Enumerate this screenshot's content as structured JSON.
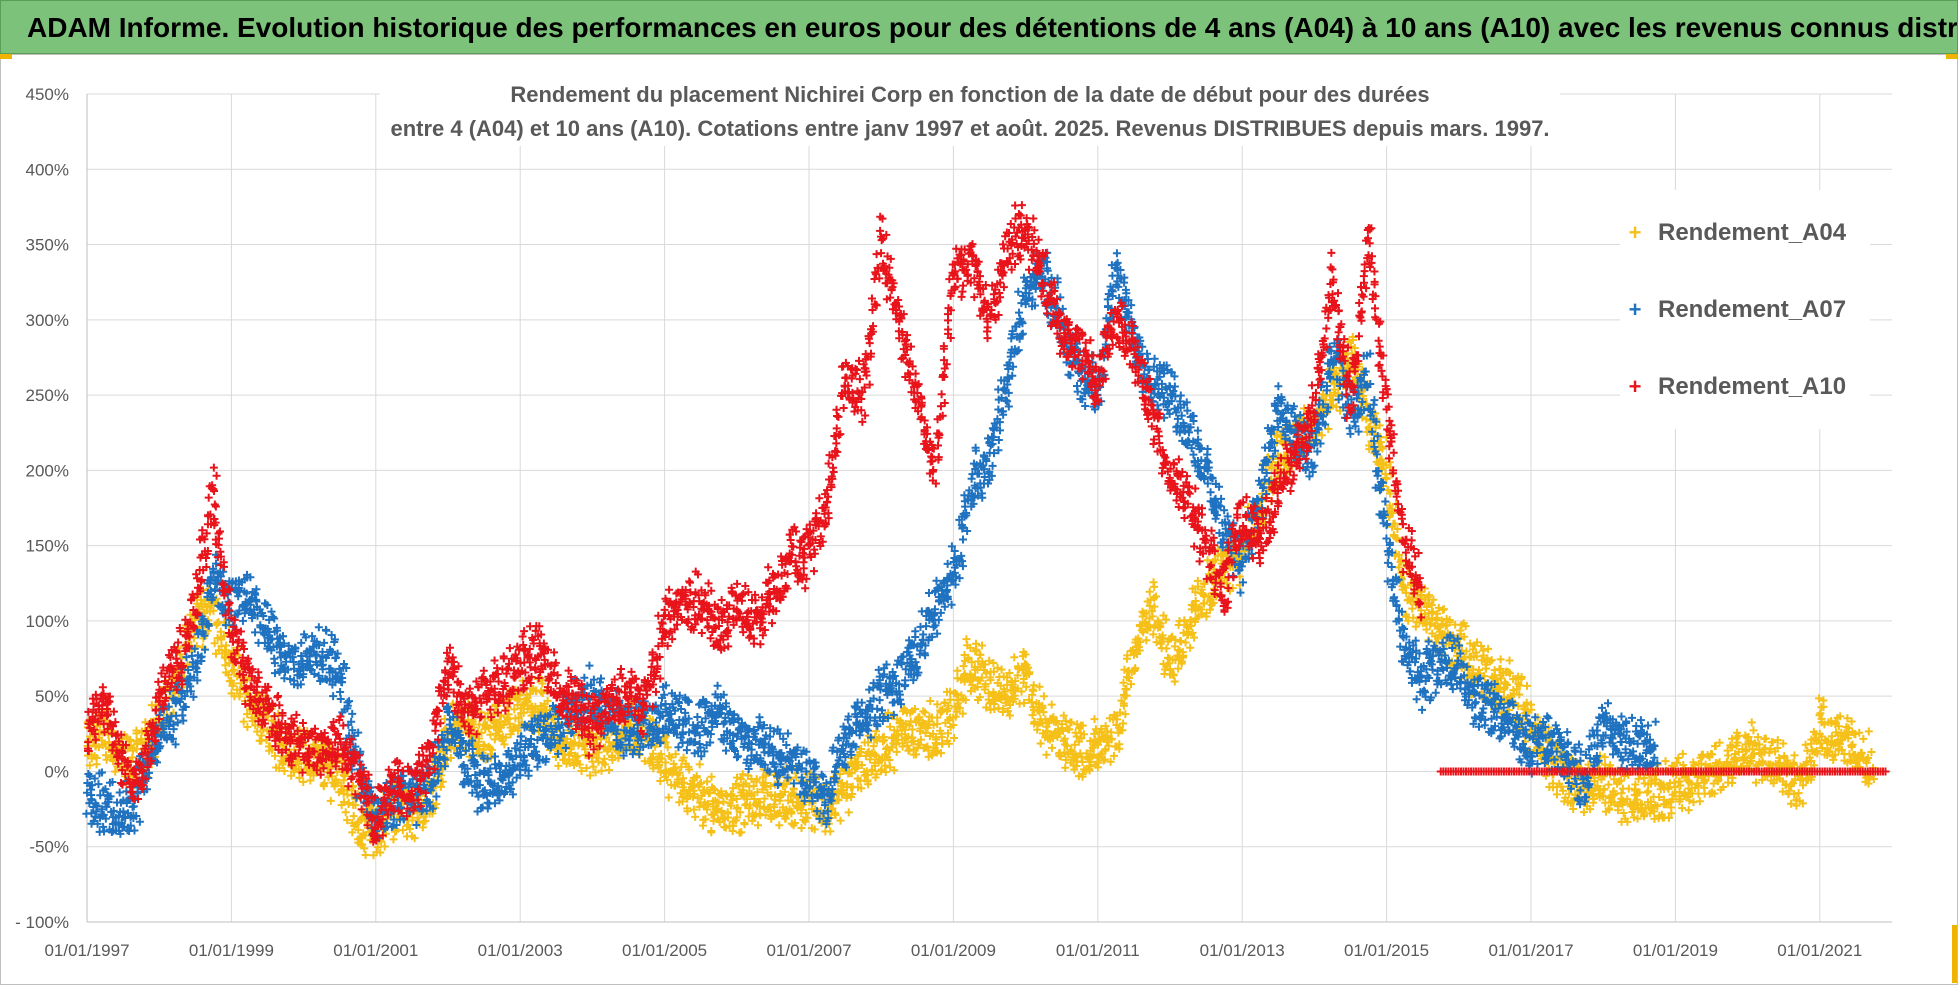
{
  "banner": {
    "title": "ADAM Informe. Evolution historique des performances en euros pour des détentions de 4 ans (A04) à 10 ans (A10) avec les revenus connus distribués"
  },
  "chart_data": {
    "type": "scatter",
    "title_line1": "Rendement du placement Nichirei Corp en fonction de la date de début pour des durées",
    "title_line2": "entre 4 (A04) et 10 ans (A10). Cotations entre janv 1997 et août. 2025. Revenus DISTRIBUES depuis mars. 1997.",
    "xlabel": "",
    "ylabel": "",
    "x_range": [
      "01/01/1997",
      "01/01/2022"
    ],
    "ylim": [
      -100,
      450
    ],
    "y_ticks": [
      -100,
      -50,
      0,
      50,
      100,
      150,
      200,
      250,
      300,
      350,
      400,
      450
    ],
    "y_tick_labels": [
      "- 100%",
      "-50%",
      "0%",
      "50%",
      "100%",
      "150%",
      "200%",
      "250%",
      "300%",
      "350%",
      "400%",
      "450%"
    ],
    "x_tick_labels": [
      "01/01/1997",
      "01/01/1999",
      "01/01/2001",
      "01/01/2003",
      "01/01/2005",
      "01/01/2007",
      "01/01/2009",
      "01/01/2011",
      "01/01/2013",
      "01/01/2015",
      "01/01/2017",
      "01/01/2019",
      "01/01/2021"
    ],
    "grid": true,
    "legend_position": "top-right",
    "series": [
      {
        "name": "Rendement_A04",
        "color": "#f5c018",
        "points": [
          [
            "1997-01",
            15
          ],
          [
            "1997-04",
            28
          ],
          [
            "1997-07",
            5
          ],
          [
            "1997-10",
            10
          ],
          [
            "1998-01",
            35
          ],
          [
            "1998-04",
            60
          ],
          [
            "1998-07",
            100
          ],
          [
            "1998-10",
            110
          ],
          [
            "1999-01",
            70
          ],
          [
            "1999-04",
            45
          ],
          [
            "1999-07",
            30
          ],
          [
            "1999-10",
            15
          ],
          [
            "2000-01",
            10
          ],
          [
            "2000-04",
            5
          ],
          [
            "2000-07",
            0
          ],
          [
            "2000-10",
            -35
          ],
          [
            "2001-01",
            -40
          ],
          [
            "2001-04",
            -25
          ],
          [
            "2001-07",
            -25
          ],
          [
            "2001-10",
            -20
          ],
          [
            "2002-01",
            25
          ],
          [
            "2002-04",
            30
          ],
          [
            "2002-07",
            20
          ],
          [
            "2002-10",
            30
          ],
          [
            "2003-01",
            40
          ],
          [
            "2003-04",
            45
          ],
          [
            "2003-07",
            20
          ],
          [
            "2003-10",
            15
          ],
          [
            "2004-01",
            15
          ],
          [
            "2004-04",
            20
          ],
          [
            "2004-07",
            30
          ],
          [
            "2004-10",
            25
          ],
          [
            "2005-01",
            5
          ],
          [
            "2005-04",
            -10
          ],
          [
            "2005-07",
            -15
          ],
          [
            "2005-10",
            -25
          ],
          [
            "2006-01",
            -20
          ],
          [
            "2006-04",
            -20
          ],
          [
            "2006-07",
            -15
          ],
          [
            "2006-10",
            -20
          ],
          [
            "2007-01",
            -15
          ],
          [
            "2007-04",
            -25
          ],
          [
            "2007-07",
            -10
          ],
          [
            "2007-10",
            5
          ],
          [
            "2008-01",
            15
          ],
          [
            "2008-04",
            25
          ],
          [
            "2008-07",
            30
          ],
          [
            "2008-10",
            25
          ],
          [
            "2009-01",
            40
          ],
          [
            "2009-04",
            75
          ],
          [
            "2009-07",
            55
          ],
          [
            "2009-10",
            55
          ],
          [
            "2010-01",
            65
          ],
          [
            "2010-04",
            30
          ],
          [
            "2010-07",
            20
          ],
          [
            "2010-10",
            15
          ],
          [
            "2011-01",
            15
          ],
          [
            "2011-04",
            20
          ],
          [
            "2011-07",
            80
          ],
          [
            "2011-10",
            110
          ],
          [
            "2012-01",
            70
          ],
          [
            "2012-04",
            100
          ],
          [
            "2012-07",
            120
          ],
          [
            "2012-10",
            140
          ],
          [
            "2013-01",
            145
          ],
          [
            "2013-04",
            175
          ],
          [
            "2013-07",
            210
          ],
          [
            "2013-10",
            220
          ],
          [
            "2014-01",
            230
          ],
          [
            "2014-04",
            250
          ],
          [
            "2014-07",
            280
          ],
          [
            "2014-10",
            230
          ],
          [
            "2015-01",
            200
          ],
          [
            "2015-04",
            120
          ],
          [
            "2015-07",
            105
          ],
          [
            "2015-10",
            95
          ],
          [
            "2016-01",
            80
          ],
          [
            "2016-04",
            70
          ],
          [
            "2016-07",
            60
          ],
          [
            "2016-10",
            55
          ],
          [
            "2017-01",
            30
          ],
          [
            "2017-04",
            10
          ],
          [
            "2017-07",
            -5
          ],
          [
            "2017-10",
            -10
          ],
          [
            "2018-01",
            -5
          ],
          [
            "2018-04",
            -15
          ],
          [
            "2018-07",
            -20
          ],
          [
            "2018-10",
            -15
          ],
          [
            "2019-01",
            -10
          ],
          [
            "2019-04",
            -5
          ],
          [
            "2019-07",
            0
          ],
          [
            "2019-10",
            5
          ],
          [
            "2020-01",
            15
          ],
          [
            "2020-04",
            10
          ],
          [
            "2020-07",
            5
          ],
          [
            "2020-10",
            -10
          ],
          [
            "2021-01",
            30
          ],
          [
            "2021-04",
            20
          ],
          [
            "2021-07",
            15
          ],
          [
            "2021-10",
            5
          ]
        ]
      },
      {
        "name": "Rendement_A07",
        "color": "#1f72c0",
        "points": [
          [
            "1997-01",
            -15
          ],
          [
            "1997-04",
            -25
          ],
          [
            "1997-07",
            -30
          ],
          [
            "1997-10",
            -10
          ],
          [
            "1998-01",
            25
          ],
          [
            "1998-04",
            40
          ],
          [
            "1998-07",
            70
          ],
          [
            "1998-10",
            130
          ],
          [
            "1999-01",
            110
          ],
          [
            "1999-04",
            120
          ],
          [
            "1999-07",
            90
          ],
          [
            "1999-10",
            75
          ],
          [
            "2000-01",
            70
          ],
          [
            "2000-04",
            80
          ],
          [
            "2000-07",
            65
          ],
          [
            "2000-10",
            0
          ],
          [
            "2001-01",
            -30
          ],
          [
            "2001-04",
            -20
          ],
          [
            "2001-07",
            -15
          ],
          [
            "2001-10",
            -15
          ],
          [
            "2002-01",
            35
          ],
          [
            "2002-04",
            5
          ],
          [
            "2002-07",
            -10
          ],
          [
            "2002-10",
            -5
          ],
          [
            "2003-01",
            10
          ],
          [
            "2003-04",
            20
          ],
          [
            "2003-07",
            30
          ],
          [
            "2003-10",
            40
          ],
          [
            "2004-01",
            50
          ],
          [
            "2004-04",
            35
          ],
          [
            "2004-07",
            25
          ],
          [
            "2004-10",
            30
          ],
          [
            "2005-01",
            40
          ],
          [
            "2005-04",
            35
          ],
          [
            "2005-07",
            30
          ],
          [
            "2005-10",
            40
          ],
          [
            "2006-01",
            25
          ],
          [
            "2006-04",
            20
          ],
          [
            "2006-07",
            10
          ],
          [
            "2006-10",
            5
          ],
          [
            "2007-01",
            -5
          ],
          [
            "2007-04",
            -20
          ],
          [
            "2007-07",
            20
          ],
          [
            "2007-10",
            35
          ],
          [
            "2008-01",
            50
          ],
          [
            "2008-04",
            60
          ],
          [
            "2008-07",
            80
          ],
          [
            "2008-10",
            110
          ],
          [
            "2009-01",
            130
          ],
          [
            "2009-04",
            190
          ],
          [
            "2009-07",
            210
          ],
          [
            "2009-10",
            260
          ],
          [
            "2010-01",
            320
          ],
          [
            "2010-04",
            330
          ],
          [
            "2010-07",
            300
          ],
          [
            "2010-10",
            260
          ],
          [
            "2011-01",
            255
          ],
          [
            "2011-04",
            330
          ],
          [
            "2011-07",
            290
          ],
          [
            "2011-10",
            260
          ],
          [
            "2012-01",
            250
          ],
          [
            "2012-04",
            230
          ],
          [
            "2012-07",
            200
          ],
          [
            "2012-10",
            160
          ],
          [
            "2013-01",
            140
          ],
          [
            "2013-04",
            180
          ],
          [
            "2013-07",
            240
          ],
          [
            "2013-10",
            220
          ],
          [
            "2014-01",
            210
          ],
          [
            "2014-04",
            280
          ],
          [
            "2014-07",
            240
          ],
          [
            "2014-10",
            260
          ],
          [
            "2015-01",
            150
          ],
          [
            "2015-04",
            80
          ],
          [
            "2015-07",
            60
          ],
          [
            "2015-10",
            75
          ],
          [
            "2016-01",
            70
          ],
          [
            "2016-04",
            45
          ],
          [
            "2016-07",
            40
          ],
          [
            "2016-10",
            30
          ],
          [
            "2017-01",
            15
          ],
          [
            "2017-04",
            20
          ],
          [
            "2017-07",
            10
          ],
          [
            "2017-10",
            -5
          ],
          [
            "2018-01",
            30
          ],
          [
            "2018-04",
            20
          ],
          [
            "2018-07",
            15
          ],
          [
            "2018-10",
            15
          ]
        ]
      },
      {
        "name": "Rendement_A10",
        "color": "#e8141b",
        "points": [
          [
            "1997-01",
            30
          ],
          [
            "1997-04",
            45
          ],
          [
            "1997-07",
            0
          ],
          [
            "1997-10",
            -5
          ],
          [
            "1998-01",
            50
          ],
          [
            "1998-04",
            70
          ],
          [
            "1998-07",
            110
          ],
          [
            "1998-10",
            185
          ],
          [
            "1999-01",
            90
          ],
          [
            "1999-04",
            60
          ],
          [
            "1999-07",
            40
          ],
          [
            "1999-10",
            25
          ],
          [
            "2000-01",
            15
          ],
          [
            "2000-04",
            15
          ],
          [
            "2000-07",
            20
          ],
          [
            "2000-10",
            0
          ],
          [
            "2001-01",
            -35
          ],
          [
            "2001-04",
            -5
          ],
          [
            "2001-07",
            -15
          ],
          [
            "2001-10",
            10
          ],
          [
            "2002-01",
            70
          ],
          [
            "2002-04",
            40
          ],
          [
            "2002-07",
            50
          ],
          [
            "2002-10",
            60
          ],
          [
            "2003-01",
            70
          ],
          [
            "2003-04",
            80
          ],
          [
            "2003-07",
            55
          ],
          [
            "2003-10",
            45
          ],
          [
            "2004-01",
            30
          ],
          [
            "2004-04",
            45
          ],
          [
            "2004-07",
            50
          ],
          [
            "2004-10",
            45
          ],
          [
            "2005-01",
            100
          ],
          [
            "2005-04",
            110
          ],
          [
            "2005-07",
            115
          ],
          [
            "2005-10",
            95
          ],
          [
            "2006-01",
            110
          ],
          [
            "2006-04",
            100
          ],
          [
            "2006-07",
            120
          ],
          [
            "2006-10",
            145
          ],
          [
            "2007-01",
            140
          ],
          [
            "2007-04",
            175
          ],
          [
            "2007-07",
            260
          ],
          [
            "2007-10",
            250
          ],
          [
            "2008-01",
            350
          ],
          [
            "2008-04",
            300
          ],
          [
            "2008-07",
            250
          ],
          [
            "2008-10",
            200
          ],
          [
            "2009-01",
            330
          ],
          [
            "2009-04",
            340
          ],
          [
            "2009-07",
            300
          ],
          [
            "2009-10",
            350
          ],
          [
            "2010-01",
            360
          ],
          [
            "2010-04",
            330
          ],
          [
            "2010-07",
            290
          ],
          [
            "2010-10",
            280
          ],
          [
            "2011-01",
            260
          ],
          [
            "2011-04",
            300
          ],
          [
            "2011-07",
            280
          ],
          [
            "2011-10",
            240
          ],
          [
            "2012-01",
            200
          ],
          [
            "2012-04",
            180
          ],
          [
            "2012-07",
            150
          ],
          [
            "2012-10",
            120
          ],
          [
            "2013-01",
            170
          ],
          [
            "2013-04",
            150
          ],
          [
            "2013-07",
            190
          ],
          [
            "2013-10",
            210
          ],
          [
            "2014-01",
            240
          ],
          [
            "2014-04",
            330
          ],
          [
            "2014-07",
            240
          ],
          [
            "2014-10",
            360
          ],
          [
            "2015-01",
            240
          ],
          [
            "2015-04",
            150
          ],
          [
            "2015-07",
            120
          ]
        ],
        "flat_segment": [
          [
            "2015-10",
            0
          ],
          [
            "2021-12",
            0
          ]
        ]
      }
    ]
  }
}
